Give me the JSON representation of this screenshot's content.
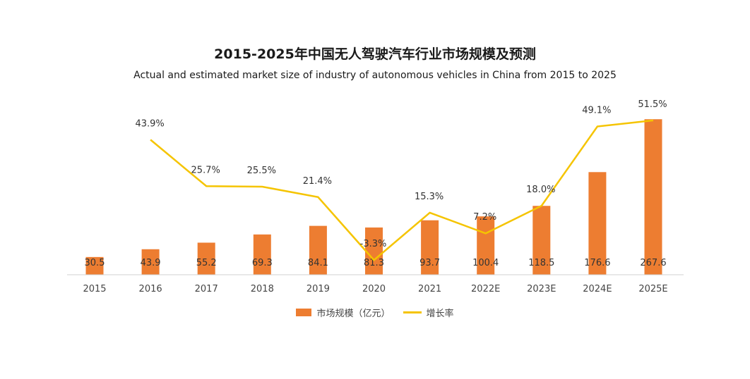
{
  "chart_data": {
    "type": "bar+line",
    "title": "2015-2025年中国无人驾驶汽车行业市场规模及预测",
    "subtitle": "Actual and estimated market size of industry of autonomous vehicles in China from 2015 to 2025",
    "categories": [
      "2015",
      "2016",
      "2017",
      "2018",
      "2019",
      "2020",
      "2021",
      "2022E",
      "2023E",
      "2024E",
      "2025E"
    ],
    "series": [
      {
        "name": "市场规模（亿元）",
        "type": "bar",
        "color": "#ED7D31",
        "values": [
          30.5,
          43.9,
          55.2,
          69.3,
          84.1,
          81.3,
          93.7,
          100.4,
          118.5,
          176.6,
          267.6
        ],
        "labels": [
          "30.5",
          "43.9",
          "55.2",
          "69.3",
          "84.1",
          "81.3",
          "93.7",
          "100.4",
          "118.5",
          "176.6",
          "267.6"
        ]
      },
      {
        "name": "增长率",
        "type": "line",
        "color": "#F5C400",
        "values": [
          null,
          43.9,
          25.7,
          25.5,
          21.4,
          -3.3,
          15.3,
          7.2,
          18.0,
          49.1,
          51.5
        ],
        "labels": [
          "",
          "43.9%",
          "25.7%",
          "25.5%",
          "21.4%",
          "-3.3%",
          "15.3%",
          "7.2%",
          "18.0%",
          "49.1%",
          "51.5%"
        ]
      }
    ],
    "legend_position": "bottom",
    "grid": false
  }
}
